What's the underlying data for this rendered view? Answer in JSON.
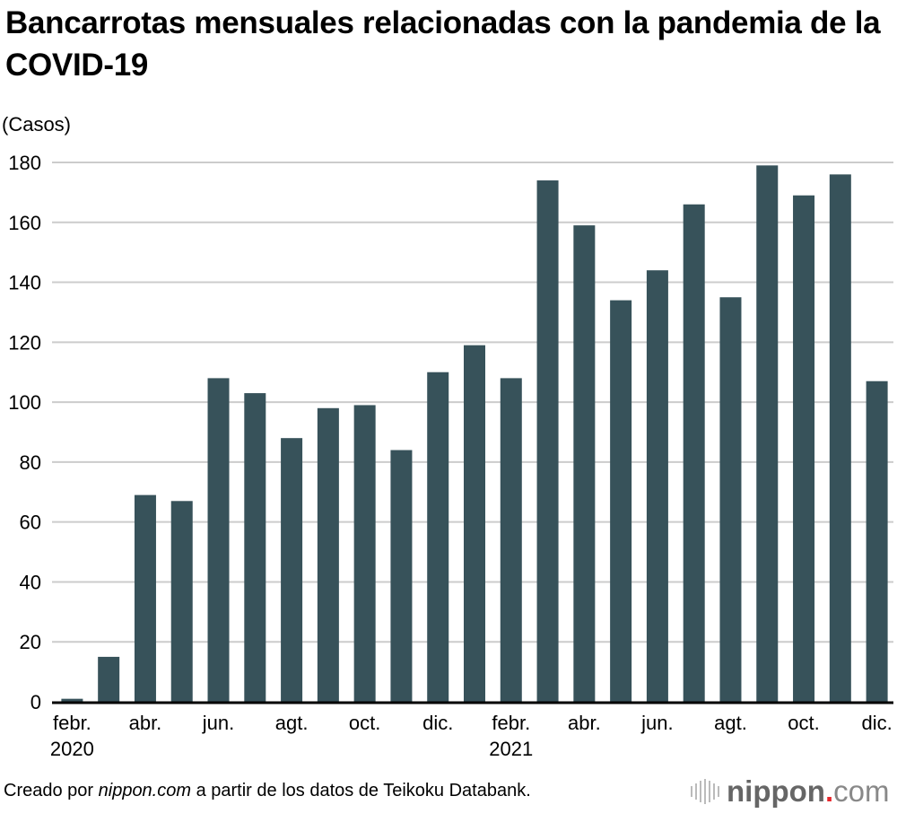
{
  "title": "Bancarrotas mensuales relacionadas con la pandemia de la COVID-19",
  "footer": {
    "prefix": "Creado por ",
    "source_italic": "nippon.com",
    "suffix": " a partir de los datos de Teikoku Databank."
  },
  "logo": {
    "name": "nippon",
    "dot": ".",
    "tld": "com",
    "dot_color": "#e8262c"
  },
  "colors": {
    "bar": "#37525a",
    "grid": "#cccccc",
    "axis": "#000000"
  },
  "chart_data": {
    "type": "bar",
    "title": "Bancarrotas mensuales relacionadas con la pandemia de la COVID-19",
    "ylabel": "(Casos)",
    "xlabel": "",
    "ylim": [
      0,
      180
    ],
    "yticks": [
      0,
      20,
      40,
      60,
      80,
      100,
      120,
      140,
      160,
      180
    ],
    "grid": true,
    "categories": [
      "2020-02",
      "2020-03",
      "2020-04",
      "2020-05",
      "2020-06",
      "2020-07",
      "2020-08",
      "2020-09",
      "2020-10",
      "2020-11",
      "2020-12",
      "2021-01",
      "2021-02",
      "2021-03",
      "2021-04",
      "2021-05",
      "2021-06",
      "2021-07",
      "2021-08",
      "2021-09",
      "2021-10",
      "2021-11",
      "2021-12"
    ],
    "values": [
      1,
      15,
      69,
      67,
      108,
      103,
      88,
      98,
      99,
      84,
      110,
      119,
      108,
      174,
      159,
      134,
      144,
      166,
      135,
      179,
      169,
      176,
      107
    ],
    "xtick_labels": [
      {
        "index": 0,
        "label": "febr.",
        "year": "2020"
      },
      {
        "index": 2,
        "label": "abr."
      },
      {
        "index": 4,
        "label": "jun."
      },
      {
        "index": 6,
        "label": "agt."
      },
      {
        "index": 8,
        "label": "oct."
      },
      {
        "index": 10,
        "label": "dic."
      },
      {
        "index": 12,
        "label": "febr.",
        "year": "2021"
      },
      {
        "index": 14,
        "label": "abr."
      },
      {
        "index": 16,
        "label": "jun."
      },
      {
        "index": 18,
        "label": "agt."
      },
      {
        "index": 20,
        "label": "oct."
      },
      {
        "index": 22,
        "label": "dic."
      }
    ]
  }
}
